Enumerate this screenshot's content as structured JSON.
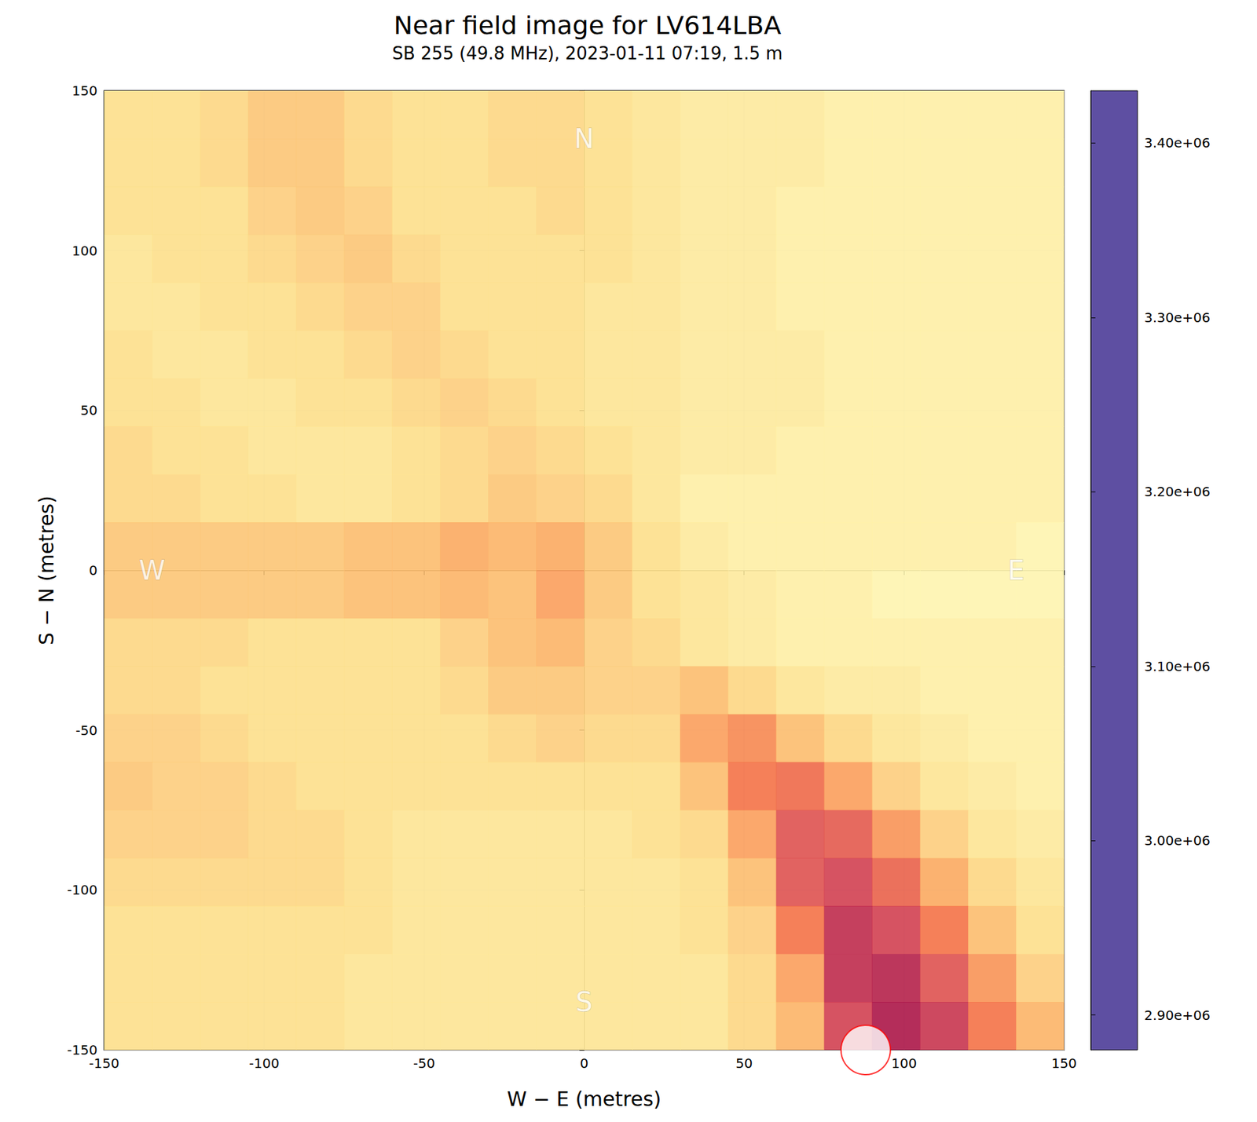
{
  "chart_data": {
    "type": "heatmap",
    "title": "Near field image for LV614LBA",
    "subtitle": "SB 255 (49.8 MHz), 2023-01-11 07:19, 1.5 m",
    "xlabel": "W − E (metres)",
    "ylabel": "S − N (metres)",
    "xlim": [
      -150,
      150
    ],
    "ylim": [
      -150,
      150
    ],
    "xticks": [
      -150,
      -100,
      -50,
      0,
      50,
      100,
      150
    ],
    "yticks": [
      -150,
      -100,
      -50,
      0,
      50,
      100,
      150
    ],
    "grid": true,
    "x": [
      -142.5,
      -127.5,
      -112.5,
      -97.5,
      -82.5,
      -67.5,
      -52.5,
      -37.5,
      -22.5,
      -7.5,
      7.5,
      22.5,
      37.5,
      52.5,
      67.5,
      82.5,
      97.5,
      112.5,
      127.5,
      142.5
    ],
    "y": [
      142.5,
      127.5,
      112.5,
      97.5,
      82.5,
      67.5,
      52.5,
      37.5,
      22.5,
      7.5,
      -7.5,
      -22.5,
      -37.5,
      -52.5,
      -67.5,
      -82.5,
      -97.5,
      -112.5,
      -127.5,
      -142.5
    ],
    "cells": [
      [
        3210000,
        3210000,
        3220000,
        3240000,
        3240000,
        3220000,
        3210000,
        3210000,
        3220000,
        3220000,
        3210000,
        3200000,
        3190000,
        3190000,
        3190000,
        3180000,
        3180000,
        3180000,
        3180000,
        3180000
      ],
      [
        3210000,
        3210000,
        3220000,
        3240000,
        3240000,
        3220000,
        3210000,
        3210000,
        3220000,
        3220000,
        3210000,
        3200000,
        3190000,
        3190000,
        3190000,
        3180000,
        3180000,
        3180000,
        3180000,
        3180000
      ],
      [
        3210000,
        3210000,
        3210000,
        3230000,
        3240000,
        3230000,
        3210000,
        3210000,
        3210000,
        3220000,
        3210000,
        3200000,
        3190000,
        3190000,
        3180000,
        3180000,
        3180000,
        3180000,
        3180000,
        3180000
      ],
      [
        3200000,
        3210000,
        3210000,
        3220000,
        3230000,
        3240000,
        3220000,
        3210000,
        3210000,
        3210000,
        3210000,
        3200000,
        3190000,
        3190000,
        3180000,
        3180000,
        3180000,
        3180000,
        3180000,
        3180000
      ],
      [
        3200000,
        3200000,
        3210000,
        3210000,
        3220000,
        3230000,
        3230000,
        3210000,
        3210000,
        3210000,
        3200000,
        3200000,
        3190000,
        3190000,
        3180000,
        3180000,
        3180000,
        3180000,
        3180000,
        3180000
      ],
      [
        3210000,
        3200000,
        3200000,
        3210000,
        3210000,
        3220000,
        3230000,
        3220000,
        3210000,
        3210000,
        3200000,
        3200000,
        3190000,
        3190000,
        3190000,
        3180000,
        3180000,
        3180000,
        3180000,
        3180000
      ],
      [
        3210000,
        3210000,
        3200000,
        3200000,
        3210000,
        3210000,
        3220000,
        3230000,
        3220000,
        3210000,
        3200000,
        3200000,
        3190000,
        3190000,
        3190000,
        3180000,
        3180000,
        3180000,
        3180000,
        3180000
      ],
      [
        3220000,
        3210000,
        3210000,
        3200000,
        3200000,
        3200000,
        3210000,
        3220000,
        3230000,
        3220000,
        3210000,
        3200000,
        3190000,
        3190000,
        3180000,
        3180000,
        3180000,
        3180000,
        3180000,
        3180000
      ],
      [
        3220000,
        3220000,
        3210000,
        3210000,
        3200000,
        3200000,
        3210000,
        3220000,
        3240000,
        3230000,
        3220000,
        3200000,
        3180000,
        3180000,
        3180000,
        3180000,
        3180000,
        3180000,
        3180000,
        3180000
      ],
      [
        3240000,
        3240000,
        3240000,
        3240000,
        3240000,
        3250000,
        3250000,
        3270000,
        3260000,
        3270000,
        3240000,
        3210000,
        3190000,
        3180000,
        3180000,
        3180000,
        3180000,
        3180000,
        3180000,
        3170000
      ],
      [
        3240000,
        3240000,
        3240000,
        3240000,
        3240000,
        3250000,
        3250000,
        3260000,
        3250000,
        3280000,
        3240000,
        3210000,
        3200000,
        3190000,
        3180000,
        3180000,
        3170000,
        3170000,
        3170000,
        3170000
      ],
      [
        3220000,
        3220000,
        3220000,
        3210000,
        3210000,
        3210000,
        3210000,
        3230000,
        3250000,
        3260000,
        3230000,
        3220000,
        3200000,
        3190000,
        3180000,
        3180000,
        3180000,
        3180000,
        3180000,
        3180000
      ],
      [
        3220000,
        3220000,
        3210000,
        3210000,
        3210000,
        3210000,
        3210000,
        3220000,
        3240000,
        3240000,
        3230000,
        3230000,
        3250000,
        3220000,
        3200000,
        3190000,
        3190000,
        3180000,
        3180000,
        3180000
      ],
      [
        3230000,
        3230000,
        3220000,
        3210000,
        3210000,
        3210000,
        3210000,
        3210000,
        3220000,
        3230000,
        3220000,
        3220000,
        3280000,
        3300000,
        3250000,
        3220000,
        3200000,
        3190000,
        3180000,
        3180000
      ],
      [
        3240000,
        3230000,
        3230000,
        3220000,
        3210000,
        3210000,
        3210000,
        3210000,
        3210000,
        3210000,
        3210000,
        3210000,
        3250000,
        3320000,
        3330000,
        3280000,
        3230000,
        3200000,
        3190000,
        3180000
      ],
      [
        3230000,
        3230000,
        3230000,
        3220000,
        3220000,
        3210000,
        3200000,
        3200000,
        3200000,
        3200000,
        3200000,
        3210000,
        3220000,
        3280000,
        3360000,
        3350000,
        3290000,
        3230000,
        3200000,
        3190000
      ],
      [
        3220000,
        3220000,
        3220000,
        3220000,
        3220000,
        3210000,
        3200000,
        3200000,
        3200000,
        3200000,
        3200000,
        3200000,
        3210000,
        3250000,
        3360000,
        3380000,
        3340000,
        3270000,
        3220000,
        3200000
      ],
      [
        3210000,
        3210000,
        3210000,
        3210000,
        3210000,
        3210000,
        3200000,
        3200000,
        3200000,
        3200000,
        3200000,
        3200000,
        3210000,
        3230000,
        3320000,
        3400000,
        3380000,
        3320000,
        3250000,
        3210000
      ],
      [
        3210000,
        3210000,
        3210000,
        3210000,
        3210000,
        3200000,
        3200000,
        3200000,
        3200000,
        3200000,
        3200000,
        3200000,
        3200000,
        3220000,
        3280000,
        3400000,
        3410000,
        3360000,
        3290000,
        3230000
      ],
      [
        3210000,
        3210000,
        3210000,
        3210000,
        3210000,
        3200000,
        3200000,
        3200000,
        3200000,
        3200000,
        3200000,
        3200000,
        3200000,
        3220000,
        3260000,
        3380000,
        3420000,
        3390000,
        3320000,
        3260000
      ]
    ],
    "colorbar": {
      "range": [
        2880000,
        3430000
      ],
      "ticks": [
        {
          "value": 2900000,
          "label": "2.90e+06"
        },
        {
          "value": 3000000,
          "label": "3.00e+06"
        },
        {
          "value": 3100000,
          "label": "3.10e+06"
        },
        {
          "value": 3200000,
          "label": "3.20e+06"
        },
        {
          "value": 3300000,
          "label": "3.30e+06"
        },
        {
          "value": 3400000,
          "label": "3.40e+06"
        }
      ]
    },
    "annotations": [
      {
        "text": "N",
        "x": 0,
        "y": 135
      },
      {
        "text": "S",
        "x": 0,
        "y": -135
      },
      {
        "text": "E",
        "x": 135,
        "y": 0
      },
      {
        "text": "W",
        "x": -135,
        "y": 0
      }
    ],
    "markers": [
      {
        "x": 88,
        "y": -150,
        "color": "red",
        "marker": "circle"
      }
    ]
  }
}
